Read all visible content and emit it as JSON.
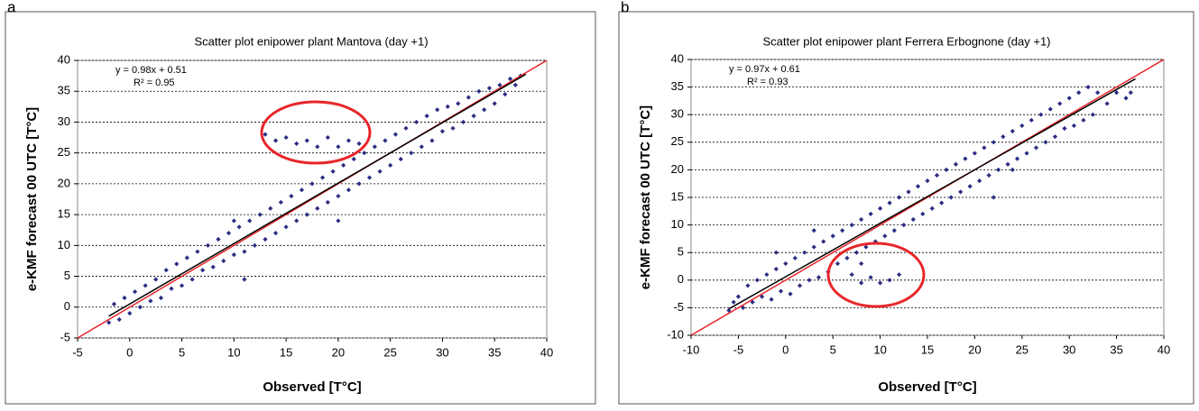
{
  "chart_data": [
    {
      "type": "scatter",
      "panel": "a",
      "title": "Scatter plot enipower plant Mantova (day +1)",
      "x_label": "Observed [T°C]",
      "y_label": "e-KMF forecast 00 UTC [T°C]",
      "xlim": [
        -5,
        40
      ],
      "ylim": [
        -5,
        40
      ],
      "xticks": [
        -5,
        0,
        5,
        10,
        15,
        20,
        25,
        30,
        35,
        40
      ],
      "yticks": [
        -5,
        0,
        5,
        10,
        15,
        20,
        25,
        30,
        35,
        40
      ],
      "grid": true,
      "identity_line_color": "#e8262b",
      "fit": {
        "label": "y = 0.98x + 0.51",
        "r2_label": "R² = 0.95",
        "slope": 0.98,
        "intercept": 0.51,
        "x_range": [
          -2,
          38
        ],
        "color": "#000000"
      },
      "series": [
        {
          "color": "#2b2d84",
          "x": [
            -2,
            -1.5,
            -1,
            -0.5,
            0,
            0.5,
            1,
            1.5,
            2,
            2.5,
            3,
            3.5,
            4,
            4.5,
            5,
            5.5,
            6,
            6.5,
            7,
            7.5,
            8,
            8.5,
            9,
            9.5,
            10,
            10.5,
            11,
            11.5,
            12,
            12.5,
            13,
            13.5,
            14,
            14.5,
            15,
            15.5,
            16,
            16.5,
            17,
            17.5,
            18,
            18.5,
            19,
            19.5,
            20,
            20.5,
            21,
            21.5,
            22,
            22.5,
            23,
            23.5,
            24,
            24.5,
            25,
            25.5,
            26,
            26.5,
            27,
            27.5,
            28,
            28.5,
            29,
            29.5,
            30,
            30.5,
            31,
            31.5,
            32,
            32.5,
            33,
            33.5,
            34,
            34.5,
            35,
            35.5,
            36,
            36.5,
            37,
            37.5,
            13,
            14,
            15,
            16,
            17,
            18,
            19,
            20,
            21,
            22,
            10,
            11,
            20
          ],
          "y": [
            -2.5,
            0.5,
            -2,
            1.5,
            -1,
            2.5,
            0,
            3.5,
            1,
            4.5,
            1.5,
            6,
            3,
            7,
            3.5,
            8,
            4.5,
            9,
            6,
            10,
            6.5,
            11,
            7.5,
            12,
            8.5,
            13,
            9,
            14,
            10,
            15,
            11,
            16,
            12,
            17,
            13,
            18,
            14,
            19,
            15,
            20,
            16,
            21,
            17,
            22,
            18,
            23,
            19,
            24,
            20,
            25,
            21,
            26,
            22,
            27,
            23,
            28,
            24,
            29,
            25,
            30,
            26,
            31,
            27,
            32,
            28.5,
            32.5,
            29,
            33,
            30,
            34,
            31,
            35,
            32,
            35.5,
            33,
            36,
            34.5,
            37,
            36,
            37.5,
            28,
            27,
            27.5,
            26.5,
            27,
            26,
            27.5,
            26,
            27,
            26.5,
            14,
            4.5,
            14
          ]
        }
      ]
    },
    {
      "type": "scatter",
      "panel": "b",
      "title": "Scatter plot enipower plant Ferrera Erbognone (day +1)",
      "x_label": "Observed [T°C]",
      "y_label": "e-KMF forecast 00 UTC [T°C]",
      "xlim": [
        -10,
        40
      ],
      "ylim": [
        -10,
        40
      ],
      "xticks": [
        -10,
        -5,
        0,
        5,
        10,
        15,
        20,
        25,
        30,
        35,
        40
      ],
      "yticks": [
        -10,
        -5,
        0,
        5,
        10,
        15,
        20,
        25,
        30,
        35,
        40
      ],
      "grid": true,
      "identity_line_color": "#e8262b",
      "fit": {
        "label": "y = 0.97x + 0.61",
        "r2_label": "R² = 0.93",
        "slope": 0.97,
        "intercept": 0.61,
        "x_range": [
          -6,
          37
        ],
        "color": "#000000"
      },
      "series": [
        {
          "color": "#2b2d84",
          "x": [
            -6,
            -5.5,
            -5,
            -4.5,
            -4,
            -3.5,
            -3,
            -2.5,
            -2,
            -1.5,
            -1,
            -0.5,
            0,
            0.5,
            1,
            1.5,
            2,
            2.5,
            3,
            3.5,
            4,
            4.5,
            5,
            5.5,
            6,
            6.5,
            7,
            7.5,
            8,
            8.5,
            9,
            9.5,
            10,
            10.5,
            11,
            11.5,
            12,
            12.5,
            13,
            13.5,
            14,
            14.5,
            15,
            15.5,
            16,
            16.5,
            17,
            17.5,
            18,
            18.5,
            19,
            19.5,
            20,
            20.5,
            21,
            21.5,
            22,
            22.5,
            23,
            23.5,
            24,
            24.5,
            25,
            25.5,
            26,
            26.5,
            27,
            27.5,
            28,
            28.5,
            29,
            29.5,
            30,
            30.5,
            31,
            31.5,
            32,
            32.5,
            33,
            34,
            35,
            36,
            36.5,
            7,
            8,
            9,
            10,
            11,
            12,
            8,
            22,
            24,
            3,
            -1
          ],
          "y": [
            -5.5,
            -4,
            -3,
            -5,
            -1,
            -4,
            0,
            -3,
            1,
            -3.5,
            2,
            -2,
            3,
            -2.5,
            4,
            -1,
            5,
            0,
            6,
            0.5,
            7,
            1.5,
            8,
            3,
            9,
            4,
            10,
            5,
            11,
            6,
            12,
            7,
            13,
            8,
            14,
            9,
            15,
            10,
            16,
            11,
            17,
            12,
            18,
            13,
            19,
            14,
            20,
            15,
            21,
            16,
            22,
            17,
            23,
            18,
            24,
            19,
            25,
            20,
            26,
            21,
            27,
            22,
            28,
            23,
            29,
            24,
            30,
            25,
            31,
            26,
            32,
            27.5,
            33,
            28,
            34,
            29,
            35,
            30,
            34,
            32,
            34,
            33,
            34,
            1,
            -0.5,
            0.5,
            -0.5,
            0,
            1,
            3,
            15,
            20,
            9,
            5
          ]
        }
      ]
    }
  ]
}
